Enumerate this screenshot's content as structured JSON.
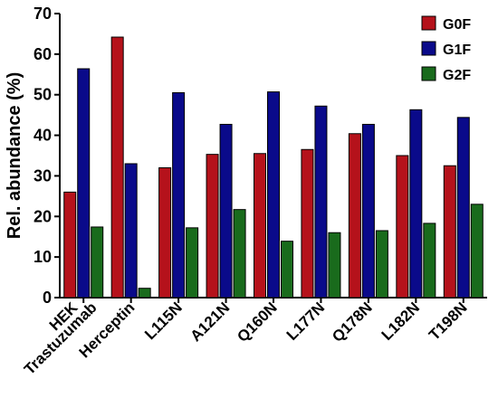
{
  "chart_data": {
    "type": "bar",
    "title": "",
    "xlabel": "",
    "ylabel": "Rel. abundance (%)",
    "ylim": [
      0,
      70
    ],
    "yticks": [
      0,
      10,
      20,
      30,
      40,
      50,
      60,
      70
    ],
    "grid": false,
    "legend_position": "top-right",
    "category_labels": [
      "HEK\nTrastuzumab",
      "Herceptin",
      "L115N",
      "A121N",
      "Q160N",
      "L177N",
      "Q178N",
      "L182N",
      "T198N"
    ],
    "series": [
      {
        "name": "G0F",
        "color": "#b5121b",
        "values": [
          26,
          64.2,
          32,
          35.3,
          35.5,
          36.5,
          40.4,
          35,
          32.5
        ]
      },
      {
        "name": "G1F",
        "color": "#0a0a8a",
        "values": [
          56.4,
          33,
          50.5,
          42.7,
          50.7,
          47.2,
          42.7,
          46.3,
          44.4
        ]
      },
      {
        "name": "G2F",
        "color": "#196b1c",
        "values": [
          17.4,
          2.3,
          17.2,
          21.7,
          13.9,
          16,
          16.5,
          18.3,
          23
        ]
      }
    ]
  }
}
